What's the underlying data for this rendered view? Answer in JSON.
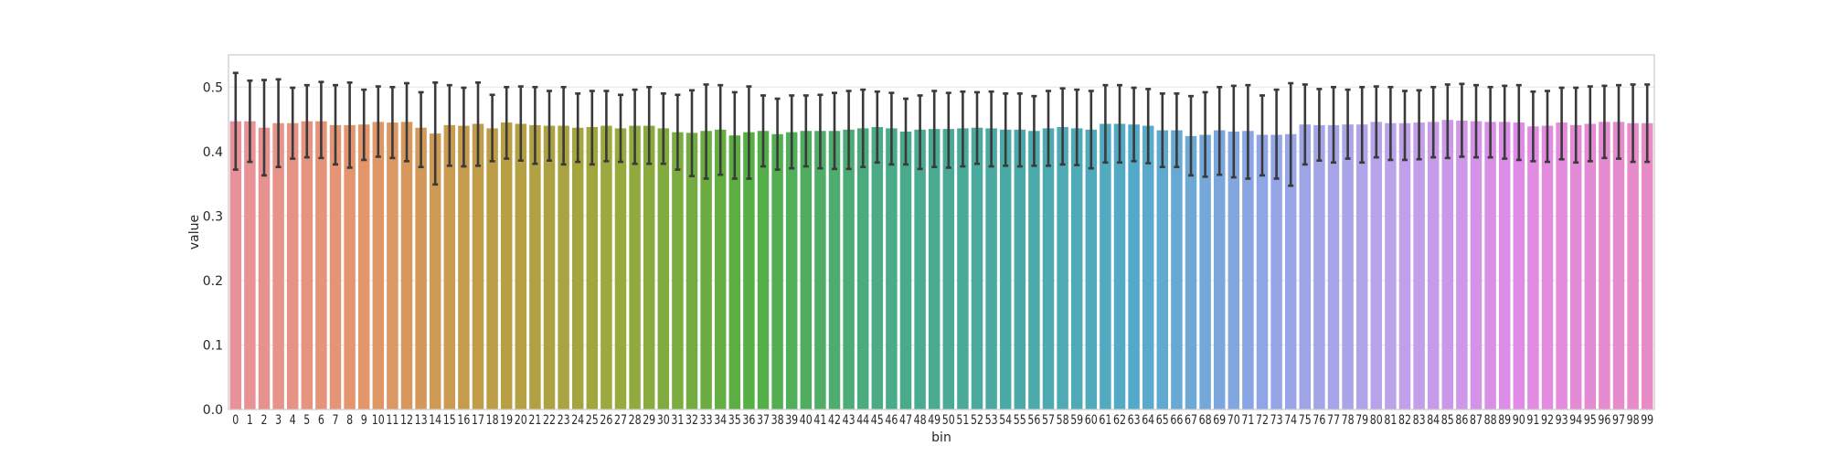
{
  "chart_data": {
    "type": "bar",
    "xlabel": "bin",
    "ylabel": "value",
    "ylim": [
      0,
      0.55
    ],
    "yticks": [
      "0.0",
      "0.1",
      "0.2",
      "0.3",
      "0.4",
      "0.5"
    ],
    "grid": true,
    "colors": [
      "#e8919a",
      "#e4966a",
      "#bd9d45",
      "#99a93d",
      "#55af43",
      "#4aab85",
      "#4aaaa5",
      "#53aac8",
      "#8fa6e6",
      "#bba3e9",
      "#e08be7",
      "#e88bc6"
    ],
    "categories": [
      "0",
      "1",
      "2",
      "3",
      "4",
      "5",
      "6",
      "7",
      "8",
      "9",
      "10",
      "11",
      "12",
      "13",
      "14",
      "15",
      "16",
      "17",
      "18",
      "19",
      "20",
      "21",
      "22",
      "23",
      "24",
      "25",
      "26",
      "27",
      "28",
      "29",
      "30",
      "31",
      "32",
      "33",
      "34",
      "35",
      "36",
      "37",
      "38",
      "39",
      "40",
      "41",
      "42",
      "43",
      "44",
      "45",
      "46",
      "47",
      "48",
      "49",
      "50",
      "51",
      "52",
      "53",
      "54",
      "55",
      "56",
      "57",
      "58",
      "59",
      "60",
      "61",
      "62",
      "63",
      "64",
      "65",
      "66",
      "67",
      "68",
      "69",
      "70",
      "71",
      "72",
      "73",
      "74",
      "75",
      "76",
      "77",
      "78",
      "79",
      "80",
      "81",
      "82",
      "83",
      "84",
      "85",
      "86",
      "87",
      "88",
      "89",
      "90",
      "91",
      "92",
      "93",
      "94",
      "95",
      "96",
      "97",
      "98",
      "99"
    ],
    "values": [
      0.447,
      0.447,
      0.437,
      0.444,
      0.444,
      0.447,
      0.447,
      0.441,
      0.441,
      0.442,
      0.446,
      0.445,
      0.446,
      0.437,
      0.428,
      0.441,
      0.44,
      0.443,
      0.436,
      0.445,
      0.443,
      0.441,
      0.44,
      0.44,
      0.437,
      0.438,
      0.44,
      0.436,
      0.44,
      0.44,
      0.436,
      0.43,
      0.429,
      0.432,
      0.434,
      0.425,
      0.43,
      0.432,
      0.427,
      0.43,
      0.432,
      0.432,
      0.432,
      0.434,
      0.436,
      0.438,
      0.436,
      0.431,
      0.434,
      0.435,
      0.435,
      0.436,
      0.437,
      0.436,
      0.434,
      0.434,
      0.432,
      0.436,
      0.438,
      0.436,
      0.434,
      0.443,
      0.443,
      0.442,
      0.44,
      0.433,
      0.433,
      0.424,
      0.426,
      0.433,
      0.431,
      0.432,
      0.426,
      0.426,
      0.427,
      0.442,
      0.441,
      0.441,
      0.442,
      0.442,
      0.446,
      0.444,
      0.444,
      0.445,
      0.446,
      0.449,
      0.448,
      0.447,
      0.446,
      0.446,
      0.445,
      0.439,
      0.44,
      0.445,
      0.441,
      0.443,
      0.446,
      0.446,
      0.444,
      0.444
    ],
    "error_low": [
      0.372,
      0.384,
      0.363,
      0.376,
      0.389,
      0.391,
      0.39,
      0.38,
      0.375,
      0.387,
      0.392,
      0.39,
      0.385,
      0.376,
      0.349,
      0.378,
      0.377,
      0.378,
      0.385,
      0.389,
      0.386,
      0.381,
      0.386,
      0.38,
      0.384,
      0.38,
      0.385,
      0.384,
      0.381,
      0.381,
      0.381,
      0.372,
      0.362,
      0.358,
      0.364,
      0.358,
      0.358,
      0.377,
      0.372,
      0.374,
      0.377,
      0.374,
      0.373,
      0.373,
      0.376,
      0.383,
      0.38,
      0.38,
      0.373,
      0.376,
      0.375,
      0.377,
      0.381,
      0.377,
      0.378,
      0.377,
      0.378,
      0.378,
      0.38,
      0.379,
      0.374,
      0.383,
      0.383,
      0.385,
      0.382,
      0.376,
      0.376,
      0.363,
      0.361,
      0.364,
      0.36,
      0.358,
      0.363,
      0.358,
      0.347,
      0.38,
      0.386,
      0.383,
      0.389,
      0.383,
      0.391,
      0.387,
      0.387,
      0.388,
      0.391,
      0.39,
      0.392,
      0.391,
      0.391,
      0.389,
      0.387,
      0.385,
      0.384,
      0.388,
      0.383,
      0.385,
      0.39,
      0.389,
      0.384,
      0.384
    ],
    "error_high": [
      0.522,
      0.51,
      0.511,
      0.512,
      0.499,
      0.503,
      0.508,
      0.503,
      0.507,
      0.496,
      0.501,
      0.5,
      0.506,
      0.492,
      0.507,
      0.503,
      0.499,
      0.507,
      0.488,
      0.5,
      0.501,
      0.5,
      0.494,
      0.5,
      0.49,
      0.494,
      0.494,
      0.488,
      0.496,
      0.5,
      0.49,
      0.488,
      0.495,
      0.504,
      0.503,
      0.492,
      0.501,
      0.487,
      0.482,
      0.487,
      0.487,
      0.488,
      0.491,
      0.494,
      0.496,
      0.493,
      0.491,
      0.482,
      0.487,
      0.494,
      0.491,
      0.493,
      0.492,
      0.493,
      0.49,
      0.49,
      0.486,
      0.494,
      0.498,
      0.496,
      0.494,
      0.503,
      0.503,
      0.499,
      0.497,
      0.49,
      0.49,
      0.486,
      0.492,
      0.5,
      0.502,
      0.503,
      0.487,
      0.496,
      0.506,
      0.504,
      0.497,
      0.5,
      0.496,
      0.5,
      0.501,
      0.5,
      0.494,
      0.495,
      0.5,
      0.504,
      0.505,
      0.503,
      0.5,
      0.502,
      0.503,
      0.493,
      0.494,
      0.499,
      0.499,
      0.501,
      0.502,
      0.503,
      0.504,
      0.504
    ]
  }
}
